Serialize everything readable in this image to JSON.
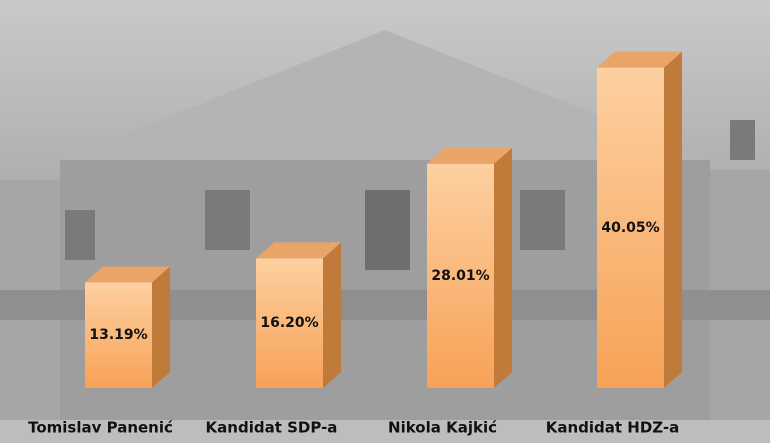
{
  "chart_data": {
    "type": "bar3d",
    "categories": [
      "Tomislav Panenić",
      "Kandidat SDP-a",
      "Nikola Kajkić",
      "Kandidat HDZ-a"
    ],
    "values": [
      13.19,
      16.2,
      28.01,
      40.05
    ],
    "value_labels": [
      "13.19%",
      "16.20%",
      "28.01%",
      "40.05%"
    ],
    "color": "#f7a257"
  }
}
